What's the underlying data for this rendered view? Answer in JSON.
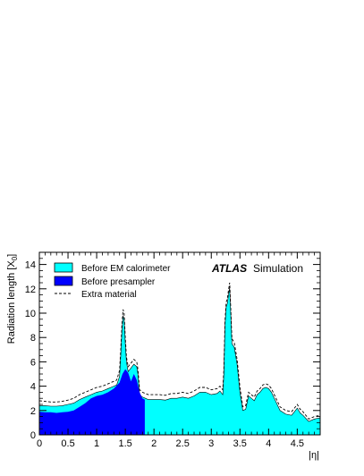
{
  "chart_data": {
    "type": "area",
    "xlabel": "|η|",
    "ylabel": "Radiation length [X",
    "ylabel_subscript": "0",
    "ylabel_close": "]",
    "xlim": [
      0,
      4.9
    ],
    "ylim": [
      0,
      15
    ],
    "xticks": [
      0,
      0.5,
      1,
      1.5,
      2,
      2.5,
      3,
      3.5,
      4,
      4.5
    ],
    "xtick_labels": [
      "0",
      "0.5",
      "1",
      "1.5",
      "2",
      "2.5",
      "3",
      "3.5",
      "4",
      "4.5"
    ],
    "yticks": [
      0,
      2,
      4,
      6,
      8,
      10,
      12,
      14
    ],
    "ytick_labels": [
      "0",
      "2",
      "4",
      "6",
      "8",
      "10",
      "12",
      "14"
    ],
    "annotation": {
      "bold": "ATLAS",
      "normal": "Simulation"
    },
    "legend": [
      {
        "label": "Before EM calorimeter",
        "style": "fill",
        "color": "#00ffff"
      },
      {
        "label": "Before presampler",
        "style": "fill",
        "color": "#0000ff"
      },
      {
        "label": "Extra material",
        "style": "dashed",
        "color": "#000000"
      }
    ],
    "series": [
      {
        "name": "Before EM calorimeter",
        "color": "#00ffff",
        "x": [
          0,
          0.1,
          0.2,
          0.3,
          0.4,
          0.5,
          0.6,
          0.7,
          0.8,
          0.9,
          1.0,
          1.1,
          1.2,
          1.3,
          1.35,
          1.4,
          1.42,
          1.44,
          1.46,
          1.48,
          1.5,
          1.52,
          1.55,
          1.6,
          1.65,
          1.7,
          1.72,
          1.75,
          1.8,
          1.85,
          1.9,
          2.0,
          2.1,
          2.2,
          2.3,
          2.4,
          2.5,
          2.6,
          2.7,
          2.8,
          2.9,
          3.0,
          3.1,
          3.15,
          3.2,
          3.22,
          3.24,
          3.26,
          3.28,
          3.3,
          3.32,
          3.34,
          3.36,
          3.4,
          3.45,
          3.5,
          3.55,
          3.6,
          3.65,
          3.7,
          3.75,
          3.8,
          3.85,
          3.9,
          3.95,
          4.0,
          4.05,
          4.1,
          4.15,
          4.2,
          4.3,
          4.4,
          4.45,
          4.5,
          4.55,
          4.6,
          4.7,
          4.8,
          4.9
        ],
        "values": [
          2.4,
          2.4,
          2.35,
          2.35,
          2.4,
          2.5,
          2.6,
          2.9,
          3.1,
          3.3,
          3.5,
          3.6,
          3.8,
          4.0,
          4.1,
          4.8,
          6.5,
          8.5,
          9.8,
          9.5,
          7.5,
          6.0,
          5.2,
          5.5,
          5.8,
          5.6,
          5.0,
          3.3,
          3.1,
          3.0,
          2.9,
          2.9,
          2.9,
          2.85,
          3.0,
          3.0,
          3.1,
          3.0,
          3.2,
          3.5,
          3.5,
          3.3,
          3.4,
          3.6,
          3.3,
          5.0,
          9.0,
          10.5,
          10.8,
          11.5,
          12.1,
          10.0,
          7.5,
          7.2,
          5.8,
          3.5,
          2.0,
          2.1,
          3.2,
          3.0,
          2.8,
          3.3,
          3.5,
          3.8,
          3.9,
          3.8,
          3.5,
          3.0,
          2.5,
          2.0,
          1.7,
          1.6,
          1.9,
          2.2,
          1.8,
          1.6,
          1.1,
          1.3,
          1.4
        ]
      },
      {
        "name": "Before presampler",
        "color": "#0000ff",
        "x": [
          0,
          0.1,
          0.2,
          0.3,
          0.4,
          0.5,
          0.6,
          0.7,
          0.8,
          0.9,
          1.0,
          1.1,
          1.2,
          1.3,
          1.4,
          1.45,
          1.5,
          1.55,
          1.6,
          1.65,
          1.7,
          1.75,
          1.8,
          1.84
        ],
        "values": [
          1.9,
          1.85,
          1.85,
          1.8,
          1.85,
          1.9,
          2.0,
          2.3,
          2.6,
          3.0,
          3.2,
          3.3,
          3.5,
          3.8,
          4.3,
          5.0,
          5.4,
          5.1,
          4.4,
          5.0,
          4.5,
          3.5,
          3.0,
          2.9
        ]
      },
      {
        "name": "Extra material",
        "color": "#000000",
        "x": [
          0,
          0.1,
          0.2,
          0.3,
          0.4,
          0.5,
          0.6,
          0.7,
          0.8,
          0.9,
          1.0,
          1.1,
          1.2,
          1.3,
          1.35,
          1.4,
          1.42,
          1.44,
          1.46,
          1.48,
          1.5,
          1.52,
          1.55,
          1.6,
          1.65,
          1.7,
          1.72,
          1.75,
          1.8,
          1.85,
          1.9,
          2.0,
          2.1,
          2.2,
          2.3,
          2.4,
          2.5,
          2.6,
          2.7,
          2.8,
          2.9,
          3.0,
          3.1,
          3.15,
          3.2,
          3.22,
          3.24,
          3.26,
          3.28,
          3.3,
          3.32,
          3.34,
          3.36,
          3.4,
          3.45,
          3.5,
          3.55,
          3.6,
          3.65,
          3.7,
          3.75,
          3.8,
          3.85,
          3.9,
          3.95,
          4.0,
          4.05,
          4.1,
          4.15,
          4.2,
          4.3,
          4.4,
          4.45,
          4.5,
          4.55,
          4.6,
          4.7,
          4.8,
          4.9
        ],
        "values": [
          2.8,
          2.75,
          2.7,
          2.7,
          2.75,
          2.85,
          3.0,
          3.3,
          3.5,
          3.7,
          3.9,
          4.0,
          4.2,
          4.4,
          4.5,
          5.3,
          7.0,
          9.0,
          10.3,
          10.0,
          8.0,
          6.4,
          5.6,
          5.9,
          6.2,
          6.0,
          5.4,
          3.7,
          3.5,
          3.4,
          3.3,
          3.3,
          3.3,
          3.25,
          3.4,
          3.4,
          3.5,
          3.4,
          3.6,
          3.9,
          3.9,
          3.7,
          3.8,
          4.0,
          3.7,
          5.4,
          9.4,
          10.9,
          11.2,
          11.9,
          12.5,
          10.4,
          7.9,
          7.6,
          6.2,
          3.9,
          2.3,
          2.4,
          3.5,
          3.3,
          3.1,
          3.6,
          3.8,
          4.1,
          4.2,
          4.1,
          3.8,
          3.3,
          2.8,
          2.3,
          2.0,
          1.9,
          2.2,
          2.5,
          2.1,
          1.9,
          1.3,
          1.5,
          1.6
        ]
      }
    ]
  }
}
